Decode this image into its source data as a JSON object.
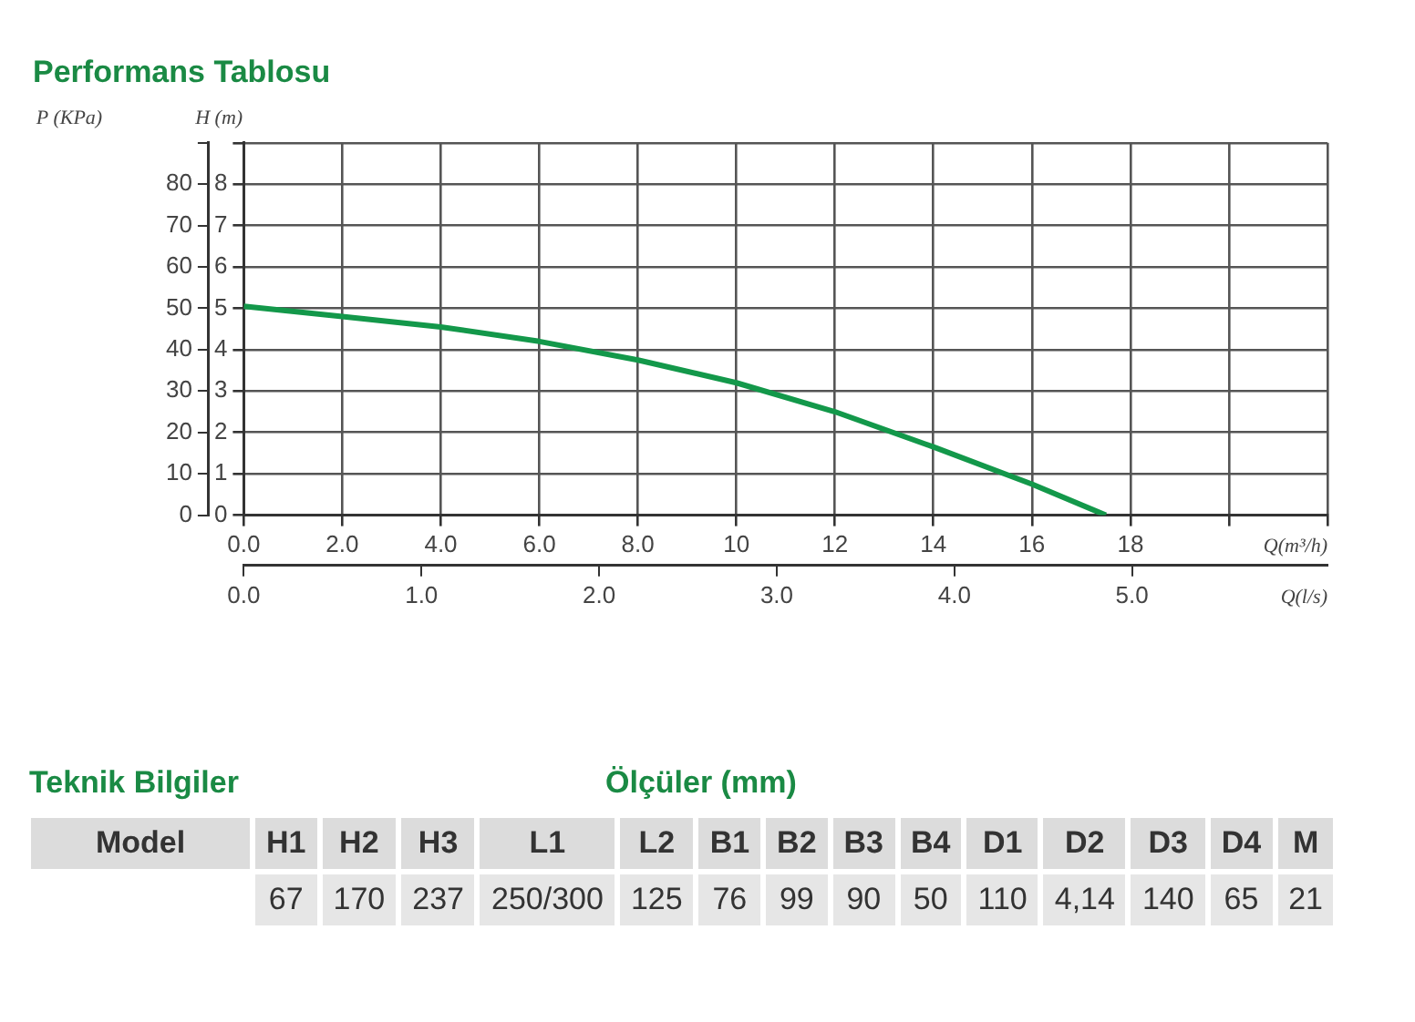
{
  "chart_data": [
    {
      "type": "line",
      "title": "Performans Tablosu",
      "xlabel": "Q(m³/h)",
      "x2label": "Q(l/s)",
      "ylabel": "H (m)",
      "y2label": "P (KPa)",
      "x": [
        0,
        2,
        4,
        6,
        8,
        10,
        12,
        14,
        16,
        17.5
      ],
      "series": [
        {
          "color": "#13984a",
          "values": [
            5.05,
            4.8,
            4.55,
            4.2,
            3.75,
            3.2,
            2.5,
            1.65,
            0.75,
            0
          ]
        }
      ],
      "xlim": [
        0,
        22
      ],
      "xticks": [
        {
          "value": 0,
          "label": "0.0"
        },
        {
          "value": 2,
          "label": "2.0"
        },
        {
          "value": 4,
          "label": "4.0"
        },
        {
          "value": 6,
          "label": "6.0"
        },
        {
          "value": 8,
          "label": "8.0"
        },
        10,
        12,
        14,
        16,
        18,
        {
          "value": 20,
          "label": null
        },
        {
          "value": 22,
          "label": null
        }
      ],
      "x2lim": [
        0,
        6.1
      ],
      "x2ticks": [
        {
          "value": 0,
          "label": "0.0"
        },
        {
          "value": 1,
          "label": "1.0"
        },
        {
          "value": 2,
          "label": "2.0"
        },
        {
          "value": 3,
          "label": "3.0"
        },
        {
          "value": 4,
          "label": "4.0"
        },
        {
          "value": 5,
          "label": "5.0"
        }
      ],
      "ylim": [
        0,
        9
      ],
      "yticks": [
        0,
        1,
        2,
        3,
        4,
        5,
        6,
        7,
        8,
        {
          "value": 9,
          "label": null
        }
      ],
      "y2lim": [
        0,
        90
      ],
      "y2ticks": [
        0,
        10,
        20,
        30,
        40,
        50,
        60,
        70,
        80,
        {
          "value": 90,
          "label": null
        }
      ],
      "grid": true
    },
    {
      "type": "other",
      "title": "Teknik Bilgiler",
      "subtitle": "Ölçüler (mm)",
      "categories": [
        "Model",
        "H1",
        "H2",
        "H3",
        "L1",
        "L2",
        "B1",
        "B2",
        "B3",
        "B4",
        "D1",
        "D2",
        "D3",
        "D4",
        "M"
      ],
      "value_labels": [
        null,
        "67",
        "170",
        "237",
        "250/300",
        "125",
        "76",
        "99",
        "90",
        "50",
        "110",
        "4,14",
        "140",
        "65",
        "21"
      ]
    }
  ]
}
